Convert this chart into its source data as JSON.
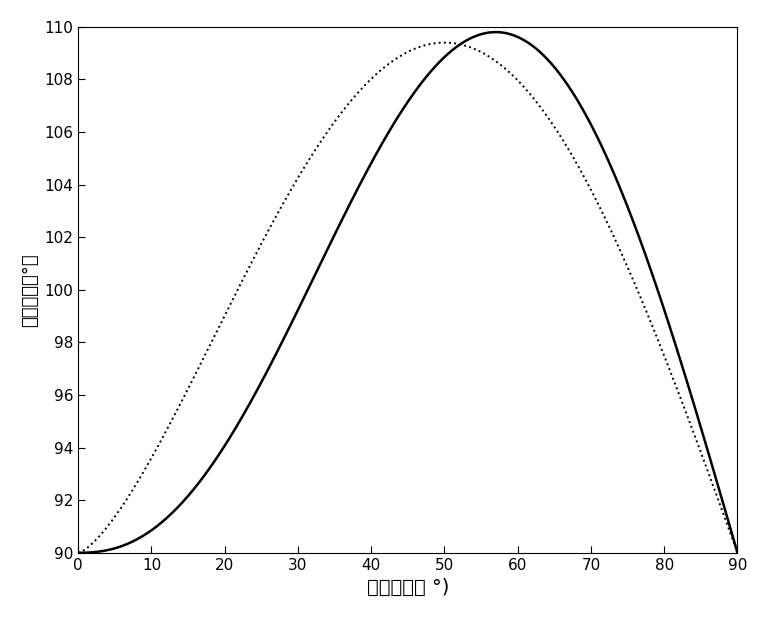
{
  "xlabel": "光入射角（ °)",
  "ylabel": "声入射角（°）",
  "xlim": [
    0,
    90
  ],
  "ylim": [
    90,
    110
  ],
  "xticks": [
    0,
    10,
    20,
    30,
    40,
    50,
    60,
    70,
    80,
    90
  ],
  "yticks": [
    90,
    92,
    94,
    96,
    98,
    100,
    102,
    104,
    106,
    108,
    110
  ],
  "background_color": "#ffffff",
  "solid_color": "#000000",
  "dotted_color": "#000000",
  "line_width": 1.8,
  "dotted_linewidth": 1.4,
  "xlabel_fontsize": 14,
  "ylabel_fontsize": 13,
  "tick_fontsize": 11,
  "solid_peak_deg": 57,
  "solid_amplitude": 19.8,
  "dotted_peak_deg": 50,
  "dotted_amplitude": 19.4
}
